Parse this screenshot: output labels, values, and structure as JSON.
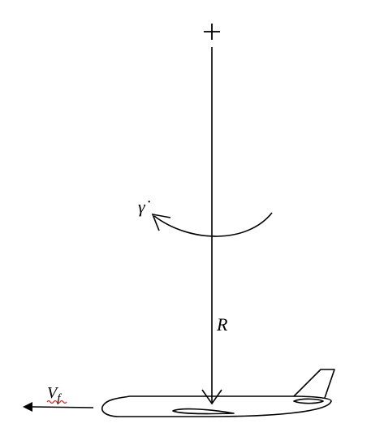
{
  "labels": {
    "yaw_rate": "γ̇",
    "radius": "R",
    "velocity_main": "V",
    "velocity_sub": "f"
  },
  "colors": {
    "stroke": "#000000",
    "background": "#ffffff",
    "spellcheck_underline": "#d42020"
  },
  "icons": {
    "center": "plus-icon",
    "rotation": "curved-arrow-icon",
    "aircraft": "airplane-icon",
    "velocity": "left-arrow-icon"
  }
}
